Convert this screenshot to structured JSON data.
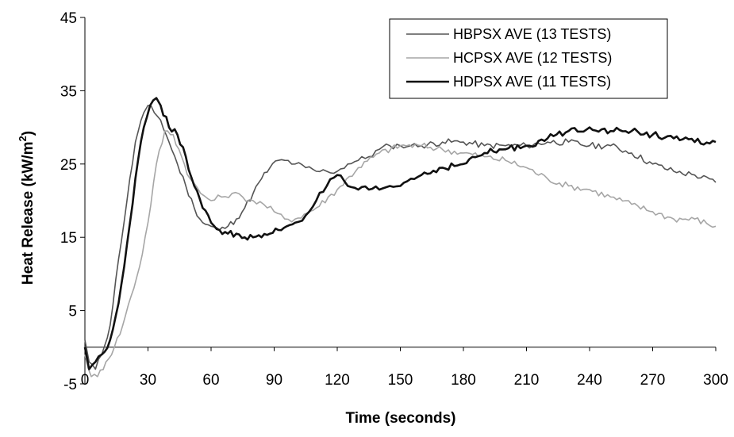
{
  "chart_data": {
    "type": "line",
    "title": "",
    "xlabel": "Time (seconds)",
    "ylabel": "Heat Release (kW/m²)",
    "ylabel_main": "Heat Release (kW/m",
    "ylabel_sup": "2",
    "ylabel_tail": ")",
    "xlim": [
      0,
      300
    ],
    "ylim": [
      -5,
      45
    ],
    "x_ticks": [
      0,
      30,
      60,
      90,
      120,
      150,
      180,
      210,
      240,
      270,
      300
    ],
    "x_tick_labels": [
      "0",
      "30",
      "60",
      "90",
      "120",
      "150",
      "180",
      "210",
      "240",
      "270",
      "300"
    ],
    "y_ticks": [
      -5,
      5,
      15,
      25,
      35,
      45
    ],
    "y_tick_labels": [
      "-5",
      "5",
      "15",
      "25",
      "35",
      "45"
    ],
    "grid": false,
    "legend_position": "top-right",
    "series": [
      {
        "name": "HBPSX AVE (13 TESTS)",
        "color": "#555555",
        "x": [
          0,
          2,
          5,
          8,
          12,
          16,
          20,
          24,
          28,
          30,
          33,
          36,
          40,
          44,
          48,
          52,
          56,
          60,
          64,
          68,
          72,
          76,
          80,
          84,
          88,
          92,
          95,
          100,
          105,
          110,
          115,
          120,
          125,
          130,
          135,
          140,
          145,
          150,
          155,
          160,
          170,
          180,
          190,
          200,
          210,
          220,
          230,
          240,
          250,
          260,
          270,
          280,
          290,
          300
        ],
        "y": [
          1,
          -2,
          -3,
          -1,
          3,
          12,
          20,
          28,
          32,
          33,
          32,
          31,
          28,
          25,
          22,
          19,
          17,
          16.5,
          16,
          16.5,
          17.5,
          19,
          21,
          23,
          24.5,
          25.5,
          25.5,
          25,
          24.5,
          24,
          24,
          24,
          25,
          25.5,
          26,
          27,
          27.5,
          27.5,
          27.5,
          27.5,
          28,
          28,
          27.5,
          27.5,
          27.5,
          28,
          28,
          27.5,
          27.5,
          26.5,
          25,
          24,
          23.5,
          22.5
        ]
      },
      {
        "name": "HCPSX AVE (12 TESTS)",
        "color": "#a6a6a6",
        "x": [
          0,
          3,
          6,
          10,
          14,
          18,
          22,
          26,
          30,
          34,
          38,
          42,
          46,
          50,
          55,
          60,
          65,
          70,
          75,
          80,
          85,
          90,
          95,
          100,
          110,
          120,
          130,
          140,
          150,
          160,
          170,
          180,
          190,
          200,
          210,
          220,
          230,
          240,
          250,
          260,
          270,
          280,
          290,
          300
        ],
        "y": [
          -1,
          -4,
          -4,
          -2,
          0,
          3,
          7,
          11,
          17,
          25,
          29.5,
          29,
          26,
          23,
          21,
          20,
          20.5,
          21,
          20.5,
          20,
          19.5,
          18.5,
          17.5,
          17.5,
          19,
          21.5,
          24.5,
          26.5,
          27.5,
          27.5,
          27,
          26.5,
          26,
          25.5,
          24.5,
          23,
          22,
          21.5,
          20.5,
          19.5,
          18.5,
          17.5,
          17.5,
          16.5
        ]
      },
      {
        "name": "HDPSX AVE (11 TESTS)",
        "color": "#111111",
        "x": [
          0,
          2,
          5,
          8,
          12,
          16,
          20,
          24,
          28,
          31,
          34,
          36,
          40,
          44,
          48,
          52,
          56,
          60,
          64,
          68,
          72,
          76,
          80,
          84,
          88,
          92,
          96,
          100,
          105,
          110,
          115,
          120,
          125,
          130,
          135,
          140,
          145,
          150,
          155,
          160,
          170,
          180,
          190,
          200,
          210,
          220,
          230,
          240,
          250,
          260,
          270,
          280,
          290,
          300
        ],
        "y": [
          0,
          -3,
          -2,
          -1,
          1,
          6,
          14,
          23,
          30,
          33,
          34,
          33,
          30,
          29,
          26,
          22,
          19,
          17,
          16,
          15.5,
          15.5,
          15,
          15,
          15,
          15.5,
          16,
          16.5,
          17,
          18,
          20,
          22,
          23.5,
          22,
          21.5,
          21.5,
          21.5,
          22,
          22,
          23,
          23.5,
          24.5,
          25,
          26.5,
          27,
          27.5,
          28.5,
          29.5,
          30,
          29.5,
          29.5,
          29,
          28.5,
          28,
          28
        ]
      }
    ]
  }
}
